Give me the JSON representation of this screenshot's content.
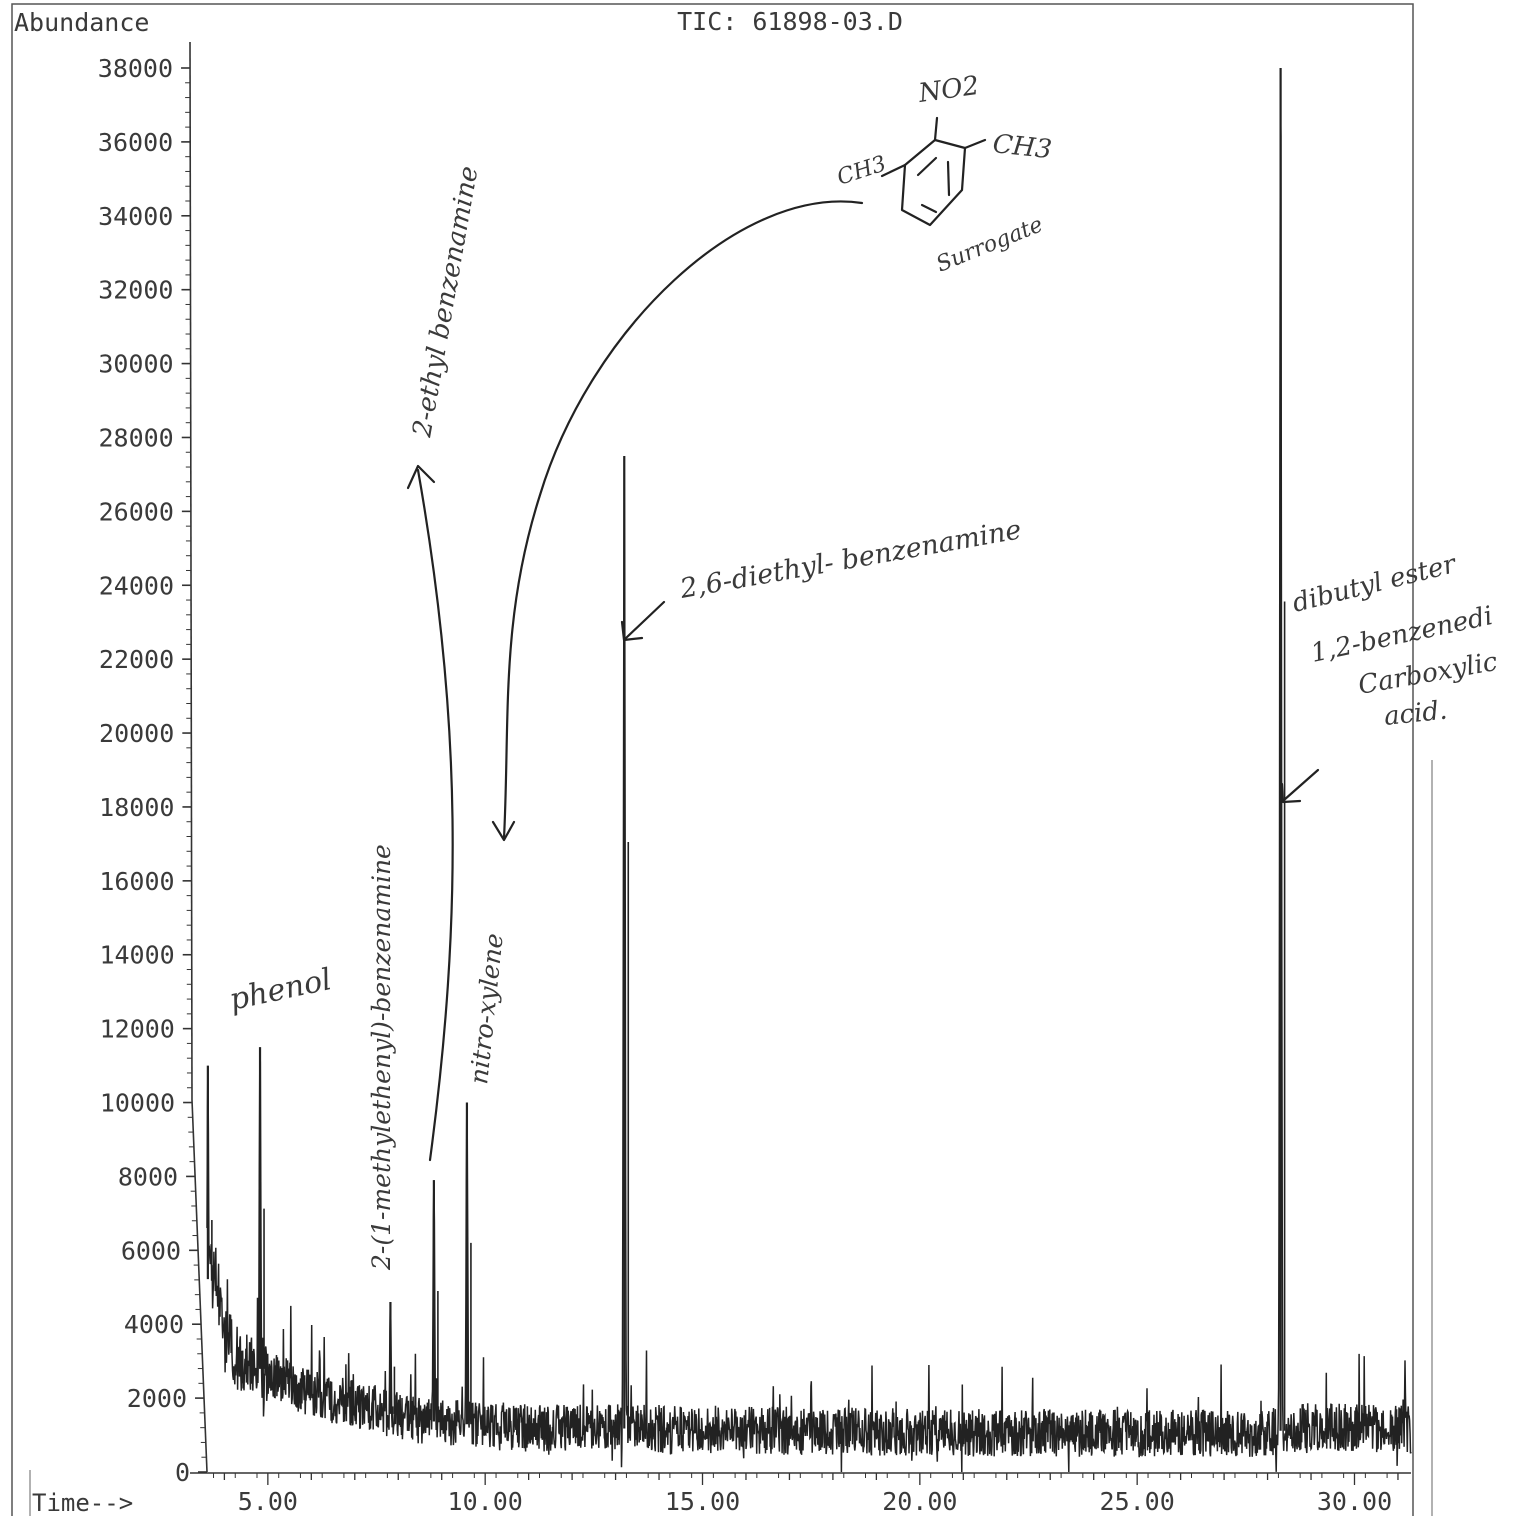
{
  "chart_data": {
    "type": "line",
    "title": "TIC: 61898-03.D",
    "ylabel": "Abundance",
    "xlabel": "Time-->",
    "xlim": [
      3.6,
      31.3
    ],
    "ylim": [
      0,
      38000
    ],
    "x_ticks": [
      "5.00",
      "10.00",
      "15.00",
      "20.00",
      "25.00",
      "30.00"
    ],
    "y_ticks": [
      "0",
      "2000",
      "4000",
      "6000",
      "8000",
      "10000",
      "12000",
      "14000",
      "16000",
      "18000",
      "20000",
      "22000",
      "24000",
      "26000",
      "28000",
      "30000",
      "32000",
      "34000",
      "36000",
      "38000"
    ],
    "baseline": [
      [
        3.6,
        5200
      ],
      [
        3.8,
        5400
      ],
      [
        4.0,
        3600
      ],
      [
        4.3,
        3100
      ],
      [
        4.6,
        2900
      ],
      [
        5.0,
        2700
      ],
      [
        5.5,
        2400
      ],
      [
        6.0,
        2100
      ],
      [
        6.5,
        1950
      ],
      [
        7.0,
        1850
      ],
      [
        7.5,
        1700
      ],
      [
        8.0,
        1500
      ],
      [
        8.5,
        1400
      ],
      [
        9.0,
        1350
      ],
      [
        9.5,
        1300
      ],
      [
        10.0,
        1250
      ],
      [
        11.0,
        1200
      ],
      [
        12.0,
        1200
      ],
      [
        13.0,
        1180
      ],
      [
        15.0,
        1150
      ],
      [
        18.0,
        1100
      ],
      [
        20.0,
        1080
      ],
      [
        22.0,
        1060
      ],
      [
        24.0,
        1050
      ],
      [
        26.0,
        1050
      ],
      [
        28.0,
        1060
      ],
      [
        29.0,
        1250
      ],
      [
        30.0,
        1200
      ],
      [
        31.3,
        1150
      ]
    ],
    "peaks": [
      {
        "rt": 3.62,
        "height": 11000
      },
      {
        "rt": 4.82,
        "height": 11500
      },
      {
        "rt": 7.82,
        "height": 4600
      },
      {
        "rt": 8.82,
        "height": 7900
      },
      {
        "rt": 9.58,
        "height": 10000
      },
      {
        "rt": 13.2,
        "height": 27500
      },
      {
        "rt": 28.3,
        "height": 38000
      }
    ],
    "annotations": [
      {
        "text": "phenol"
      },
      {
        "text": "2-(1-methylethenyl)-benzenamine"
      },
      {
        "text": "2-ethyl benzenamine"
      },
      {
        "text": "nitro-xylene"
      },
      {
        "text": "2,6-diethyl- benzenamine"
      },
      {
        "text": "dibutyl ester"
      },
      {
        "text": "1,2-benzenedi"
      },
      {
        "text": "Carboxylic"
      },
      {
        "text": "acid."
      },
      {
        "text": "Surrogate"
      },
      {
        "text": "NO2"
      },
      {
        "text": "CH3"
      },
      {
        "text": "CH3"
      }
    ]
  }
}
